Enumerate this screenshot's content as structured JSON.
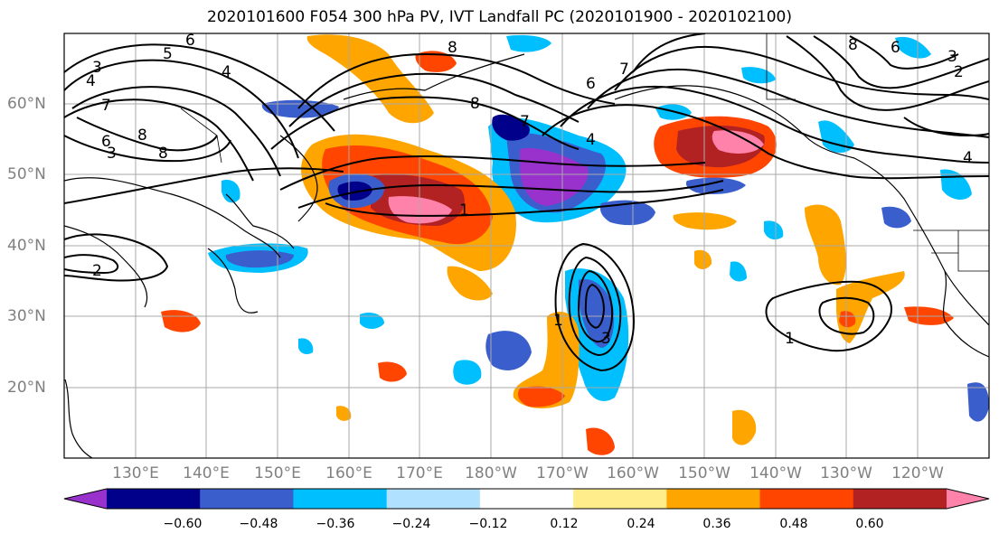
{
  "title": "2020101600 F054 300 hPa PV, IVT Landfall PC (2020101900 - 2020102100)",
  "lat_labels": [
    "60°N",
    "50°N",
    "40°N",
    "30°N",
    "20°N"
  ],
  "lon_labels": [
    "130°E",
    "140°E",
    "150°E",
    "160°E",
    "170°E",
    "180°W",
    "170°W",
    "160°W",
    "150°W",
    "140°W",
    "130°W",
    "120°W"
  ],
  "colorbar": {
    "ticks": [
      "−0.60",
      "−0.48",
      "−0.36",
      "−0.24",
      "−0.12",
      "0.12",
      "0.24",
      "0.36",
      "0.48",
      "0.60"
    ],
    "colors": [
      "#9932cc",
      "#00008b",
      "#3a5fcd",
      "#00bfff",
      "#b0e2ff",
      "#ffffff",
      "#ffec8b",
      "#ffa500",
      "#ff4500",
      "#b22222",
      "#ff82ab"
    ]
  },
  "contour_labels": [
    "6",
    "5",
    "4",
    "3",
    "4",
    "7",
    "6",
    "8",
    "8",
    "2",
    "1",
    "8",
    "7",
    "4",
    "6",
    "3",
    "8",
    "7",
    "1",
    "3",
    "1",
    "8",
    "6",
    "3",
    "2",
    "4"
  ]
}
